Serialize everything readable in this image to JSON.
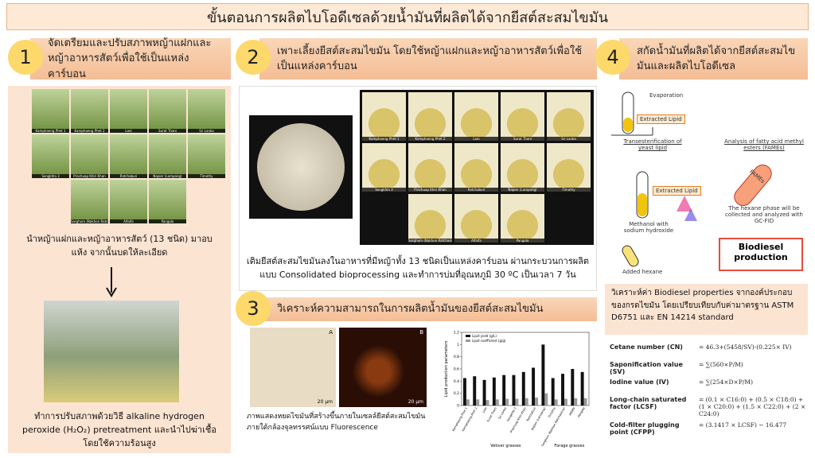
{
  "header": {
    "title": "ขั้นตอนการผลิตไบโอดีเซลด้วยน้ำมันที่ผลิตได้จากยีสต์สะสมไขมัน"
  },
  "steps": [
    {
      "number": "1",
      "heading": "จัดเตรียมและปรับสภาพหญ้าแฝกและหญ้าอาหารสัตว์เพื่อใช้เป็นแหล่งคาร์บอน",
      "grass_labels": [
        "Kamphaeng Phet 1",
        "Kamphaeng Phet 2",
        "Loei",
        "Surat Thani",
        "Sri Lanka",
        "Songkhla 3",
        "Prachuap Khiri Khan",
        "Ratchaburi",
        "Napier (Lampang)",
        "Timothy",
        "Sorghum (Nakhon Ratchasima)",
        "Alfalfa",
        "Pangola"
      ],
      "text_1": "นำหญ้าแฝกและหญ้าอาหารสัตว์ (13 ชนิด) มาอบแห้ง จากนั้นบดให้ละเอียด",
      "text_2": "ทำการปรับสภาพด้วยวิธี alkaline hydrogen peroxide (H₂O₂) pretreatment และนำไปฆ่าเชื้อโดยใช้ความร้อนสูง"
    },
    {
      "number": "2",
      "heading": "เพาะเลี้ยงยีสต์สะสมไขมัน โดยใช้หญ้าแฝกและหญ้าอาหารสัตว์เพื่อใช้เป็นแหล่งคาร์บอน",
      "flask_labels": [
        "Kamphaeng Phet 1",
        "Kamphaeng Phet 2",
        "Loei",
        "Surat Thani",
        "Sri Lanka",
        "Songkhla 3",
        "Prachuap Khiri Khan",
        "Ratchaburi",
        "Napier (Lampang)",
        "Timothy",
        "Sorghum (Nakhon Ratchasima)",
        "Alfalfa",
        "Pangola"
      ],
      "text": "เติมยีสต์สะสมไขมันลงในอาหารที่มีหญ้าทั้ง 13 ชนิดเป็นแหล่งคาร์บอน ผ่านกระบวนการผลิตแบบ Consolidated bioprocessing และทำการบ่มที่อุณหภูมิ 30 ºC เป็นเวลา 7 วัน"
    },
    {
      "number": "3",
      "heading": "วิเคราะห์ความสามารถในการผลิตน้ำมันของยีสต์สะสมไขมัน",
      "micrograph_labels": [
        "A",
        "B"
      ],
      "scale_bars": [
        "20 µm",
        "20 µm"
      ],
      "caption": "ภาพแสดงหยดไขมันที่สร้างขึ้นภายในเซลล์ยีสต์สะสมไขมัน ภายใต้กล้องจุลทรรศน์แบบ Fluorescence",
      "chart_data": {
        "type": "bar",
        "y_label": "Lipid production parameters",
        "categories": [
          "Kamphaeng Phet 1",
          "Kamphaeng Phet 2",
          "Loei",
          "Surat Thani",
          "Sri Lanka",
          "Songkhla 3",
          "Prachuap Khiri Khan",
          "Ratchaburi",
          "Napier (Lampang)",
          "Timothy",
          "Sorghum (Nakhon Ratchasima)",
          "Alfalfa",
          "Pangola"
        ],
        "groups": [
          "Vetiver grasses",
          "Forage grasses"
        ],
        "series": [
          {
            "name": "Lipid yield (g/L)",
            "color": "#111111",
            "values": [
              0.45,
              0.48,
              0.42,
              0.46,
              0.5,
              0.5,
              0.55,
              0.62,
              1.0,
              0.45,
              0.52,
              0.6,
              0.55
            ]
          },
          {
            "name": "Lipid coefficient (g/g)",
            "color": "#9a9a9a",
            "values": [
              0.1,
              0.1,
              0.09,
              0.1,
              0.11,
              0.11,
              0.12,
              0.13,
              0.2,
              0.1,
              0.11,
              0.12,
              0.12
            ]
          }
        ],
        "ylim": [
          0,
          1.2
        ],
        "yticks": [
          0,
          0.2,
          0.4,
          0.6,
          0.8,
          1,
          1.2
        ]
      }
    },
    {
      "number": "4",
      "heading": "สกัดน้ำมันที่ผลิตได้จากยีสต์สะสมไขมันและผลิตไบโอดีเซล",
      "diagram": {
        "evaporation": "Evaporation",
        "extracted_lipid_1": "Extracted Lipid",
        "transesterification": "Transesterification of yeast lipid",
        "analysis": "Analysis of fatty acid methyl esters (FAMEs)",
        "extracted_lipid_2": "Extracted Lipid",
        "methanol": "Methanol with sodium hydroxide",
        "hexane": "Added hexane",
        "fames": "FAMEs",
        "hexane_phase": "The hexane phase will be collected and analyzed with GC-FID",
        "biodiesel": "Biodiesel production"
      },
      "text": "วิเคราะห์ค่า Biodiesel properties จากองค์ประกอบของกรดไขมัน โดยเปรียบเทียบกับค่ามาตรฐาน ASTM D6751 และ EN 14214 standard",
      "formulas": [
        {
          "name": "Cetane number (CN)",
          "expression": "= 46.3+(5458/SV)-(0.225× IV)"
        },
        {
          "name": "Saponification value (SV)",
          "expression": "= ∑(560×P/M)"
        },
        {
          "name": "Iodine value (IV)",
          "expression": "= ∑(254×D×P/M)"
        },
        {
          "name": "Long-chain saturated factor (LCSF)",
          "expression": "= (0.1 × C16:0) + (0.5 × C18:0) + (1 × C20:0) + (1.5 × C22:0) + (2 × C24:0)"
        },
        {
          "name": "Cold-filter plugging point (CFPP)",
          "expression": "= (3.1417 × LCSF) − 16.477"
        }
      ]
    }
  ]
}
